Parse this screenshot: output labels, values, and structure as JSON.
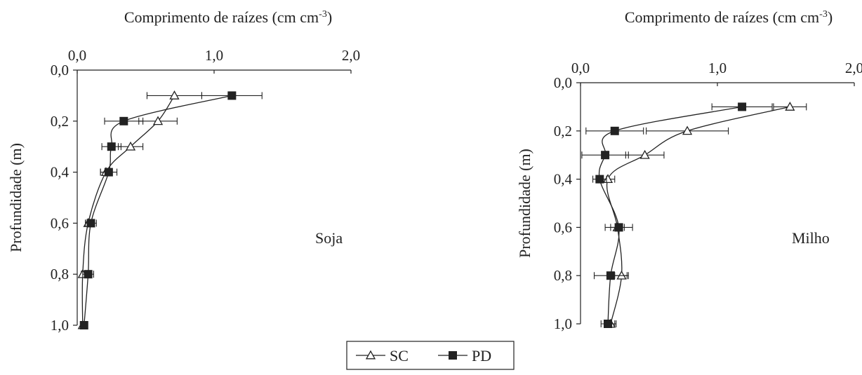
{
  "chart_data": [
    {
      "type": "line",
      "panel_label": "Soja",
      "xlabel": "Comprimento de raízes (cm cm",
      "xlabel_sup": "-3",
      "xlabel_close": ")",
      "ylabel": "Profundidade (m)",
      "xlim": [
        0,
        2
      ],
      "ylim": [
        0,
        1
      ],
      "y_inverted": true,
      "x_axis_position": "top",
      "xticks": [
        0,
        1,
        2
      ],
      "xtick_labels": [
        "0,0",
        "1,0",
        "2,0"
      ],
      "yticks": [
        0,
        0.2,
        0.4,
        0.6,
        0.8,
        1.0
      ],
      "ytick_labels": [
        "0,0",
        "0,2",
        "0,4",
        "0,6",
        "0,8",
        "1,0"
      ],
      "series": [
        {
          "name": "SC",
          "marker": "open-triangle",
          "points": [
            {
              "y": 0.1,
              "x": 0.71,
              "err": 0.2
            },
            {
              "y": 0.2,
              "x": 0.59,
              "err": 0.14
            },
            {
              "y": 0.3,
              "x": 0.39,
              "err": 0.09
            },
            {
              "y": 0.4,
              "x": 0.21,
              "err": 0.04
            },
            {
              "y": 0.6,
              "x": 0.08,
              "err": 0.02
            },
            {
              "y": 0.8,
              "x": 0.04,
              "err": 0.01
            },
            {
              "y": 1.0,
              "x": 0.04,
              "err": 0.005
            }
          ]
        },
        {
          "name": "PD",
          "marker": "filled-square",
          "points": [
            {
              "y": 0.1,
              "x": 1.13,
              "err": 0.22
            },
            {
              "y": 0.2,
              "x": 0.34,
              "err": 0.14
            },
            {
              "y": 0.3,
              "x": 0.25,
              "err": 0.07
            },
            {
              "y": 0.4,
              "x": 0.23,
              "err": 0.06
            },
            {
              "y": 0.6,
              "x": 0.1,
              "err": 0.04
            },
            {
              "y": 0.8,
              "x": 0.08,
              "err": 0.04
            },
            {
              "y": 1.0,
              "x": 0.05,
              "err": 0.01
            }
          ]
        }
      ]
    },
    {
      "type": "line",
      "panel_label": "Milho",
      "xlabel": "Comprimento de raízes (cm cm",
      "xlabel_sup": "-3",
      "xlabel_close": ")",
      "ylabel": "Profundidade (m)",
      "xlim": [
        0,
        2
      ],
      "ylim": [
        0,
        1
      ],
      "y_inverted": true,
      "x_axis_position": "top",
      "xticks": [
        0,
        1,
        2
      ],
      "xtick_labels": [
        "0,0",
        "1,0",
        "2,0"
      ],
      "yticks": [
        0,
        0.2,
        0.4,
        0.6,
        0.8,
        1.0
      ],
      "ytick_labels": [
        "0,0",
        "0,2",
        "0,4",
        "0,6",
        "0,8",
        "1,0"
      ],
      "series": [
        {
          "name": "SC",
          "marker": "open-triangle",
          "points": [
            {
              "y": 0.1,
              "x": 1.53,
              "err": 0.12
            },
            {
              "y": 0.2,
              "x": 0.78,
              "err": 0.3
            },
            {
              "y": 0.3,
              "x": 0.47,
              "err": 0.14
            },
            {
              "y": 0.4,
              "x": 0.2,
              "err": 0.05
            },
            {
              "y": 0.6,
              "x": 0.27,
              "err": 0.05
            },
            {
              "y": 0.8,
              "x": 0.3,
              "err": 0.05
            },
            {
              "y": 1.0,
              "x": 0.22,
              "err": 0.04
            }
          ]
        },
        {
          "name": "PD",
          "marker": "filled-square",
          "points": [
            {
              "y": 0.1,
              "x": 1.18,
              "err": 0.22
            },
            {
              "y": 0.2,
              "x": 0.25,
              "err": 0.21
            },
            {
              "y": 0.3,
              "x": 0.18,
              "err": 0.17
            },
            {
              "y": 0.4,
              "x": 0.14,
              "err": 0.05
            },
            {
              "y": 0.6,
              "x": 0.28,
              "err": 0.1
            },
            {
              "y": 0.8,
              "x": 0.22,
              "err": 0.12
            },
            {
              "y": 1.0,
              "x": 0.2,
              "err": 0.05
            }
          ]
        }
      ]
    }
  ],
  "legend": {
    "placement": "bottom-center",
    "entries": [
      {
        "name": "SC",
        "marker": "open-triangle"
      },
      {
        "name": "PD",
        "marker": "filled-square"
      }
    ]
  }
}
